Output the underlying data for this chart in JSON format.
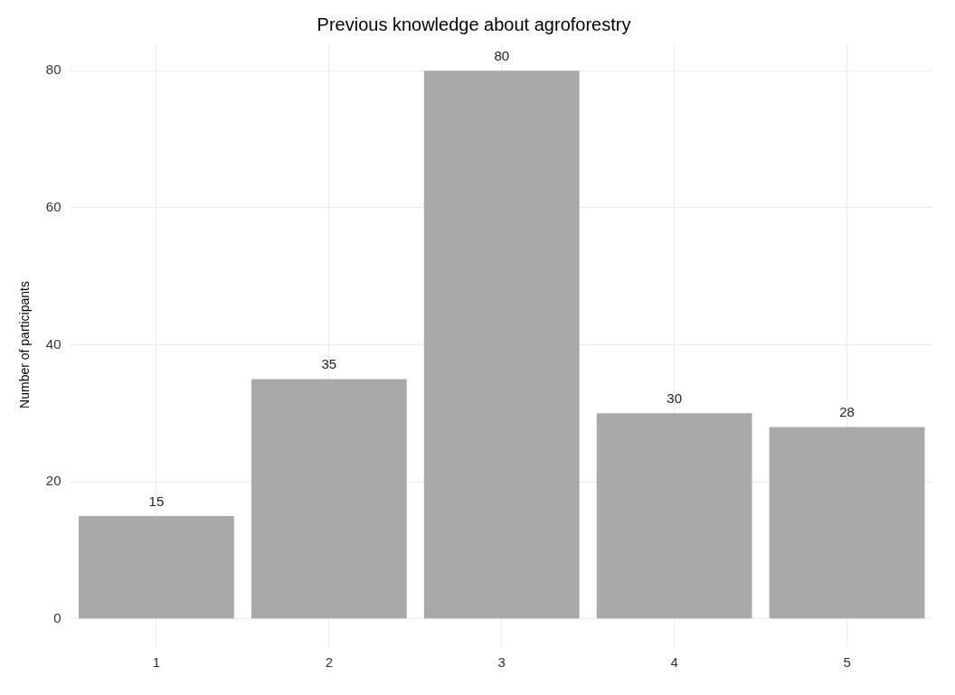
{
  "chart_data": {
    "type": "bar",
    "title": "Previous knowledge about agroforestry",
    "ylabel": "Number of participants",
    "categories": [
      "1",
      "2",
      "3",
      "4",
      "5"
    ],
    "values": [
      15,
      35,
      80,
      30,
      28
    ],
    "color": "#a9a9a9",
    "ylim": [
      -4,
      84
    ],
    "yticks": [
      0,
      20,
      40,
      60,
      80
    ],
    "grid": true,
    "data_labels": true
  }
}
